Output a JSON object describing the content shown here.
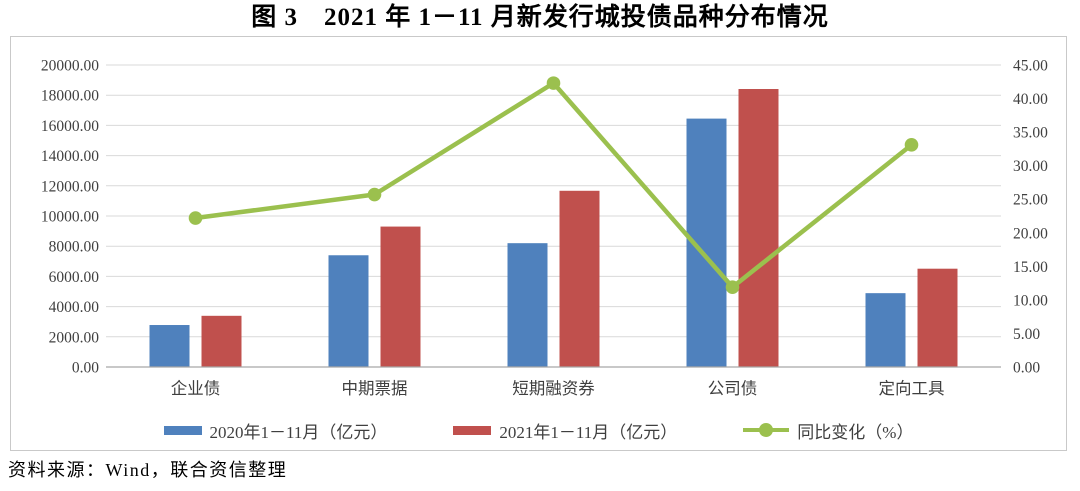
{
  "title": "图 3　2021 年 1－11 月新发行城投债品种分布情况",
  "chart_data": {
    "type": "combo-bar-line",
    "categories": [
      "企业债",
      "中期票据",
      "短期融资券",
      "公司债",
      "定向工具"
    ],
    "series": [
      {
        "name": "2020年1－11月（亿元）",
        "type": "bar",
        "axis": "left",
        "color": "#4F81BD",
        "values": [
          2780,
          7400,
          8200,
          16450,
          4890
        ]
      },
      {
        "name": "2021年1－11月（亿元）",
        "type": "bar",
        "axis": "left",
        "color": "#C0504D",
        "values": [
          3390,
          9300,
          11670,
          18410,
          6510
        ]
      },
      {
        "name": "同比变化（%）",
        "type": "line",
        "axis": "right",
        "color": "#9BC04E",
        "values": [
          22.2,
          25.7,
          42.3,
          11.9,
          33.1
        ]
      }
    ],
    "left_axis": {
      "min": 0,
      "max": 20000,
      "step": 2000,
      "tick_labels": [
        "0.00",
        "2000.00",
        "4000.00",
        "6000.00",
        "8000.00",
        "10000.00",
        "12000.00",
        "14000.00",
        "16000.00",
        "18000.00",
        "20000.00"
      ]
    },
    "right_axis": {
      "min": 0,
      "max": 45,
      "step": 5,
      "tick_labels": [
        "0.00",
        "5.00",
        "10.00",
        "15.00",
        "20.00",
        "25.00",
        "30.00",
        "35.00",
        "40.00",
        "45.00"
      ]
    },
    "grid": true,
    "legend_position": "bottom"
  },
  "colors": {
    "grid": "#d9d9d9",
    "baseline": "#a6a6a6",
    "axis_text": "#3f3f3f",
    "border": "#c9c9c9"
  },
  "footer": {
    "source": "资料来源：Wind，联合资信整理"
  }
}
